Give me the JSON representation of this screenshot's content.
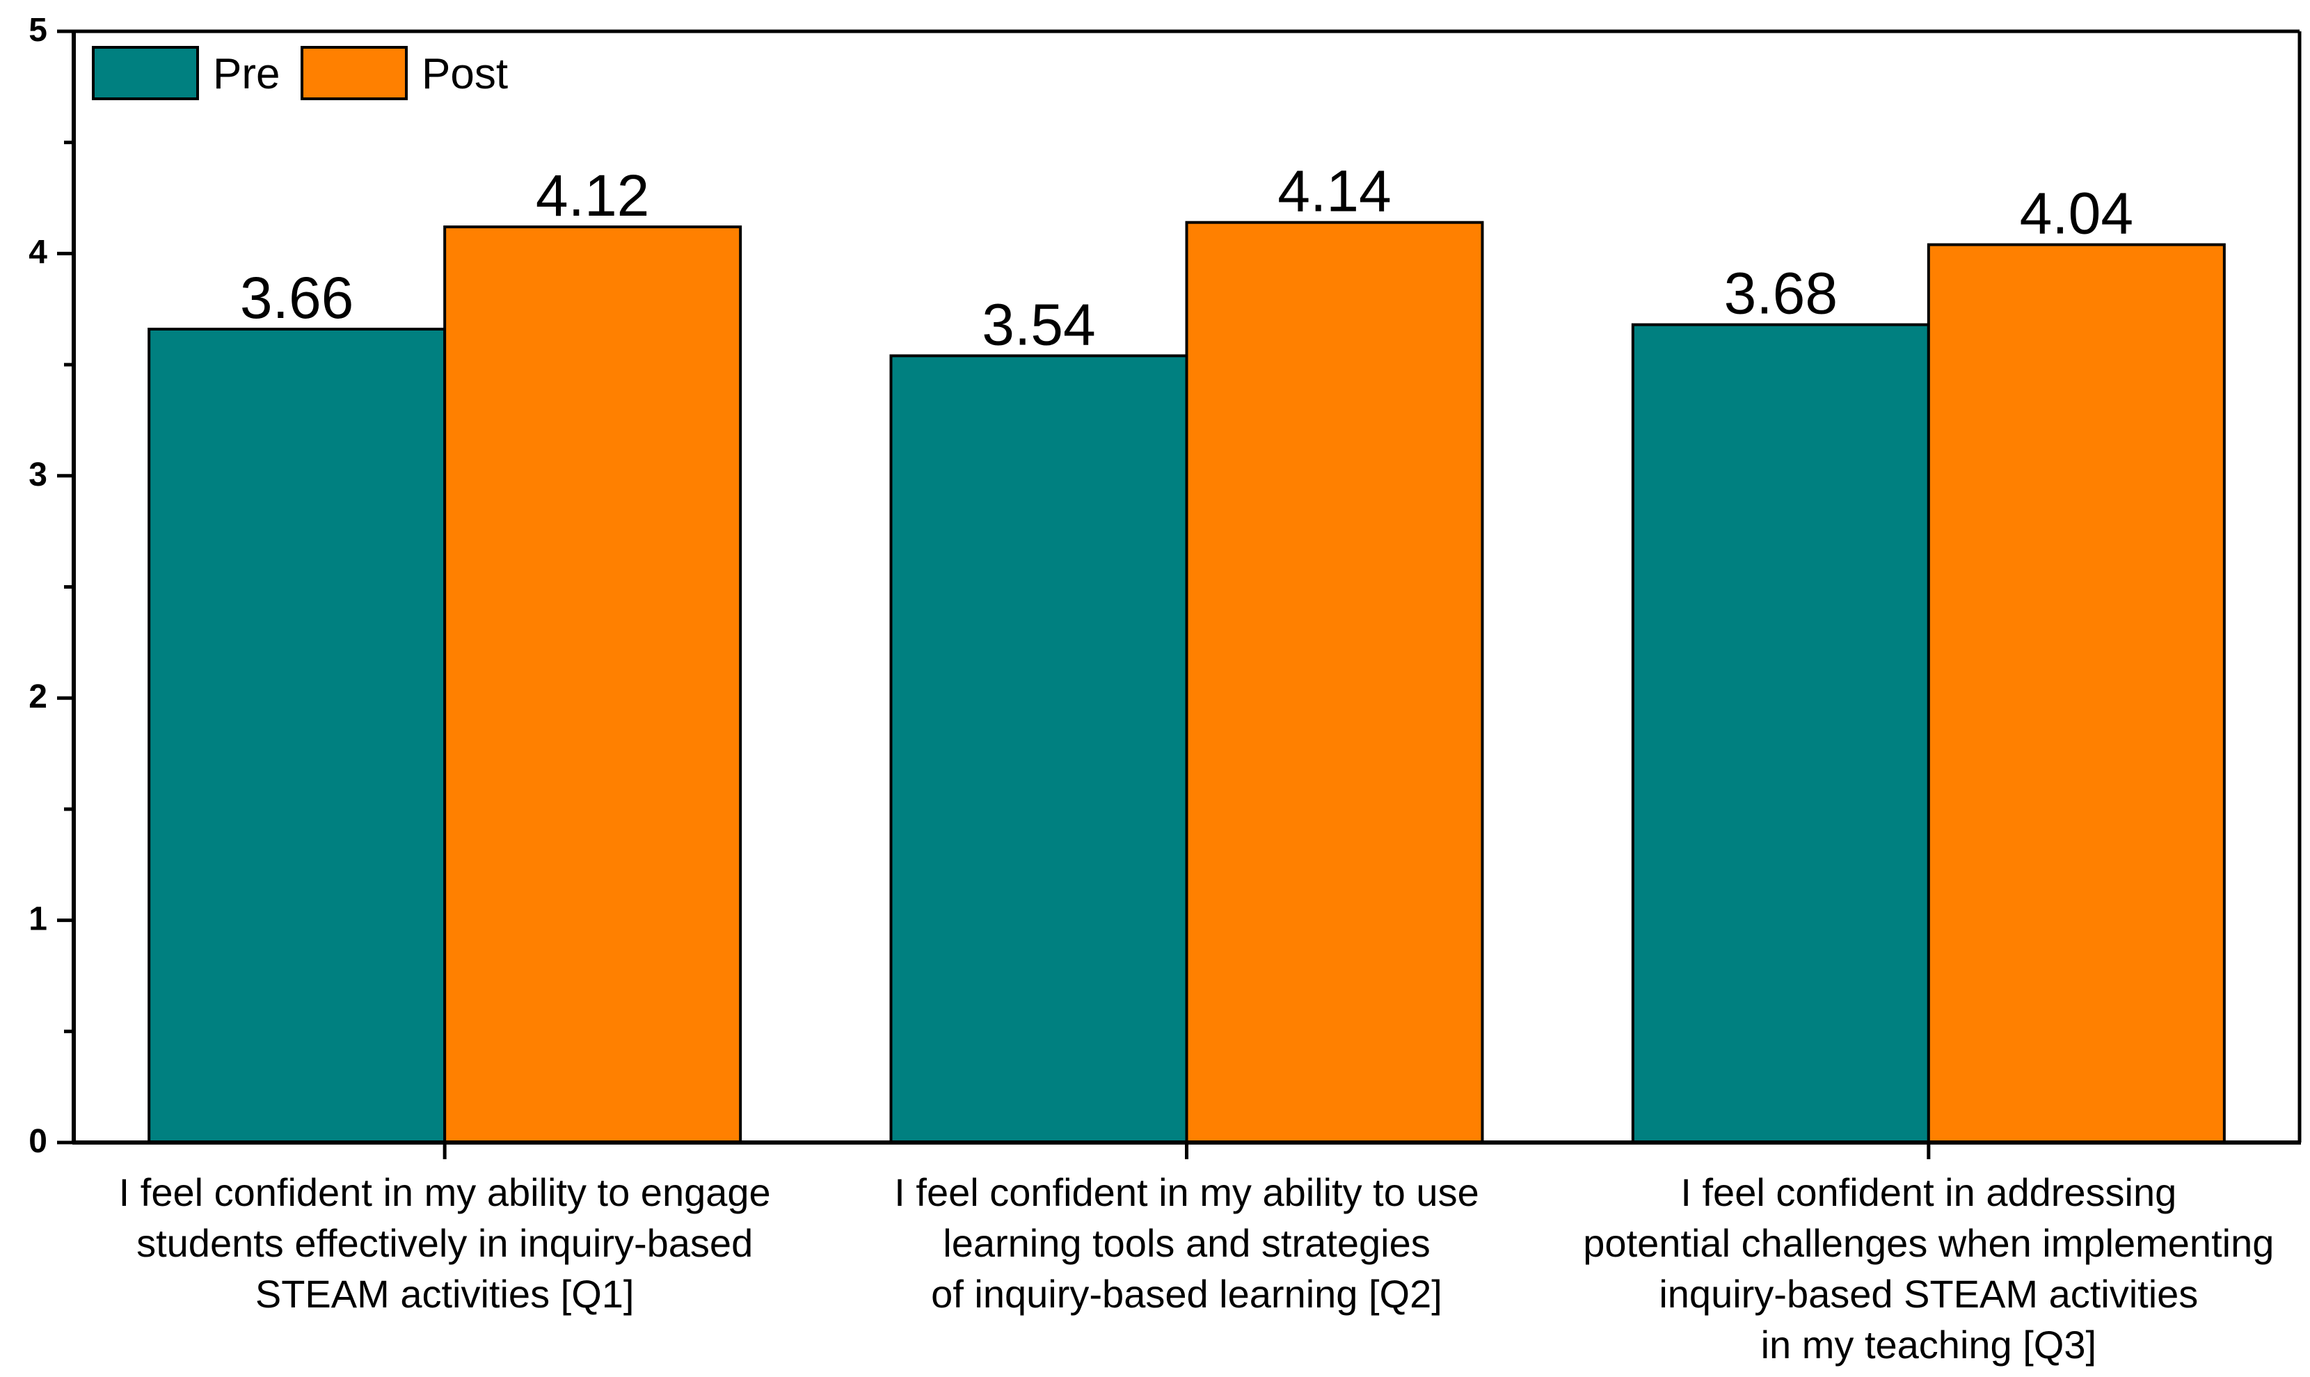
{
  "chart_data": {
    "type": "bar",
    "title": "",
    "xlabel": "",
    "ylabel": "",
    "ylim": [
      0,
      5
    ],
    "yticks": [
      "0",
      "1",
      "2",
      "3",
      "4",
      "5"
    ],
    "grid": false,
    "legend_position": "top-left",
    "categories": [
      [
        "I feel confident in my ability to engage",
        "students effectively in inquiry-based",
        "STEAM activities [Q1]"
      ],
      [
        "I feel confident in my ability to use",
        "learning tools and strategies",
        "of inquiry-based learning [Q2]"
      ],
      [
        "I feel confident in addressing",
        "potential challenges when implementing",
        "inquiry-based STEAM activities",
        "in my teaching [Q3]"
      ]
    ],
    "series": [
      {
        "name": "Pre",
        "color": "#008080",
        "values": [
          3.66,
          3.54,
          3.68
        ],
        "labels": [
          "3.66",
          "3.54",
          "3.68"
        ]
      },
      {
        "name": "Post",
        "color": "#FF8000",
        "values": [
          4.12,
          4.14,
          4.04
        ],
        "labels": [
          "4.12",
          "4.14",
          "4.04"
        ]
      }
    ]
  }
}
